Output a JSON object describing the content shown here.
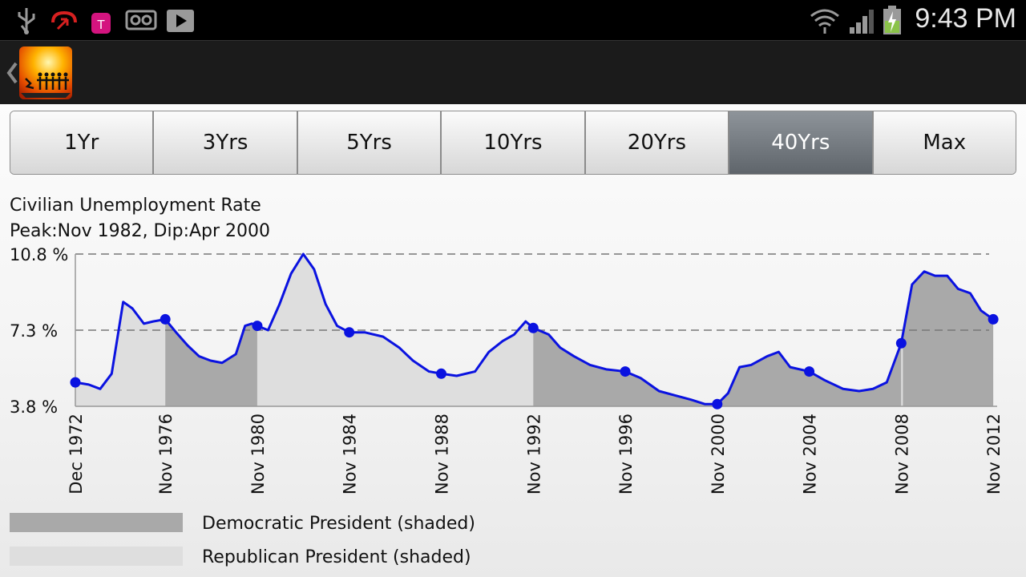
{
  "status_bar": {
    "time": "9:43 PM",
    "notification_icons": [
      "usb-icon",
      "missed-call-icon",
      "tmobile-tag-icon",
      "voicemail-icon",
      "play-store-icon"
    ],
    "system_icons": [
      "wifi-icon",
      "signal-icon",
      "battery-charging-icon"
    ]
  },
  "action_bar": {
    "back_icon": "chevron-left-icon",
    "app_icon": "app-logo-sunset-icon"
  },
  "tabs": [
    {
      "label": "1Yr",
      "active": false
    },
    {
      "label": "3Yrs",
      "active": false
    },
    {
      "label": "5Yrs",
      "active": false
    },
    {
      "label": "10Yrs",
      "active": false
    },
    {
      "label": "20Yrs",
      "active": false
    },
    {
      "label": "40Yrs",
      "active": true
    },
    {
      "label": "Max",
      "active": false
    }
  ],
  "legend": {
    "democratic_label": "Democratic President (shaded)",
    "republican_label": "Republican President (shaded)",
    "democratic_color": "#a9a9a9",
    "republican_color": "#dedede"
  },
  "colors": {
    "line": "#0a12e0",
    "tab_active": "#6e747a"
  },
  "chart_data": {
    "type": "area",
    "title": "Civilian Unemployment Rate",
    "subtitle": "Peak:Nov 1982, Dip:Apr 2000",
    "xlabel": "",
    "ylabel": "",
    "ylim": [
      3.8,
      10.8
    ],
    "xlim": [
      1972.92,
      2013.0
    ],
    "y_ticks": [
      "10.8 %",
      "7.3 %",
      "3.8 %"
    ],
    "y_tick_values": [
      10.8,
      7.3,
      3.8
    ],
    "x_tick_labels": [
      "Dec 1972",
      "Nov 1976",
      "Nov 1980",
      "Nov 1984",
      "Nov 1988",
      "Nov 1992",
      "Nov 1996",
      "Nov 2000",
      "Nov 2004",
      "Nov 2008",
      "Nov 2012"
    ],
    "x_tick_values": [
      1972.92,
      1976.83,
      1980.83,
      1984.83,
      1988.83,
      1992.83,
      1996.83,
      2000.83,
      2004.83,
      2008.83,
      2012.83
    ],
    "grid": "dashed at 10.8 % and 7.3 %",
    "shading_periods": [
      {
        "party": "Republican",
        "start": 1972.92,
        "end": 1976.83
      },
      {
        "party": "Democratic",
        "start": 1976.83,
        "end": 1980.83
      },
      {
        "party": "Republican",
        "start": 1980.83,
        "end": 1992.83
      },
      {
        "party": "Democratic",
        "start": 1992.83,
        "end": 2008.83
      },
      {
        "party": "Republican",
        "start": 2008.83,
        "end": 2008.9
      },
      {
        "party": "Democratic",
        "start": 2008.9,
        "end": 2013.0
      }
    ],
    "series": [
      {
        "x": [
          1972.92,
          1973.5,
          1974.0,
          1974.5,
          1975.0,
          1975.4,
          1975.9,
          1976.3,
          1976.83,
          1977.3,
          1977.8,
          1978.3,
          1978.8,
          1979.3,
          1979.9,
          1980.3,
          1980.6,
          1980.83,
          1981.3,
          1981.8,
          1982.3,
          1982.83,
          1983.3,
          1983.8,
          1984.3,
          1984.83,
          1985.5,
          1986.3,
          1987.0,
          1987.6,
          1988.3,
          1988.83,
          1989.5,
          1990.3,
          1990.9,
          1991.5,
          1992.0,
          1992.5,
          1992.83,
          1993.5,
          1994.0,
          1994.6,
          1995.3,
          1996.0,
          1996.83,
          1997.5,
          1998.3,
          1999.0,
          1999.7,
          2000.3,
          2000.83,
          2001.3,
          2001.8,
          2002.3,
          2003.0,
          2003.5,
          2004.0,
          2004.83,
          2005.5,
          2006.3,
          2007.0,
          2007.6,
          2008.2,
          2008.83,
          2009.3,
          2009.83,
          2010.3,
          2010.83,
          2011.3,
          2011.83,
          2012.3,
          2012.83
        ],
        "y": [
          4.9,
          4.8,
          4.6,
          5.3,
          8.6,
          8.3,
          7.6,
          7.7,
          7.8,
          7.2,
          6.6,
          6.1,
          5.9,
          5.8,
          6.2,
          7.5,
          7.6,
          7.5,
          7.3,
          8.5,
          9.9,
          10.8,
          10.1,
          8.5,
          7.5,
          7.2,
          7.2,
          7.0,
          6.5,
          5.9,
          5.4,
          5.3,
          5.2,
          5.4,
          6.3,
          6.8,
          7.1,
          7.7,
          7.4,
          7.1,
          6.5,
          6.1,
          5.7,
          5.5,
          5.4,
          5.1,
          4.5,
          4.3,
          4.1,
          3.9,
          3.9,
          4.4,
          5.6,
          5.7,
          6.1,
          6.3,
          5.6,
          5.4,
          5.0,
          4.6,
          4.5,
          4.6,
          4.9,
          6.7,
          9.4,
          10.0,
          9.8,
          9.8,
          9.2,
          9.0,
          8.2,
          7.8
        ]
      }
    ],
    "markers": {
      "x": [
        1972.92,
        1976.83,
        1980.83,
        1984.83,
        1988.83,
        1992.83,
        1996.83,
        2000.83,
        2004.83,
        2008.83,
        2012.83
      ],
      "y": [
        4.9,
        7.8,
        7.5,
        7.2,
        5.3,
        7.4,
        5.4,
        3.9,
        5.4,
        6.7,
        7.8
      ]
    }
  }
}
